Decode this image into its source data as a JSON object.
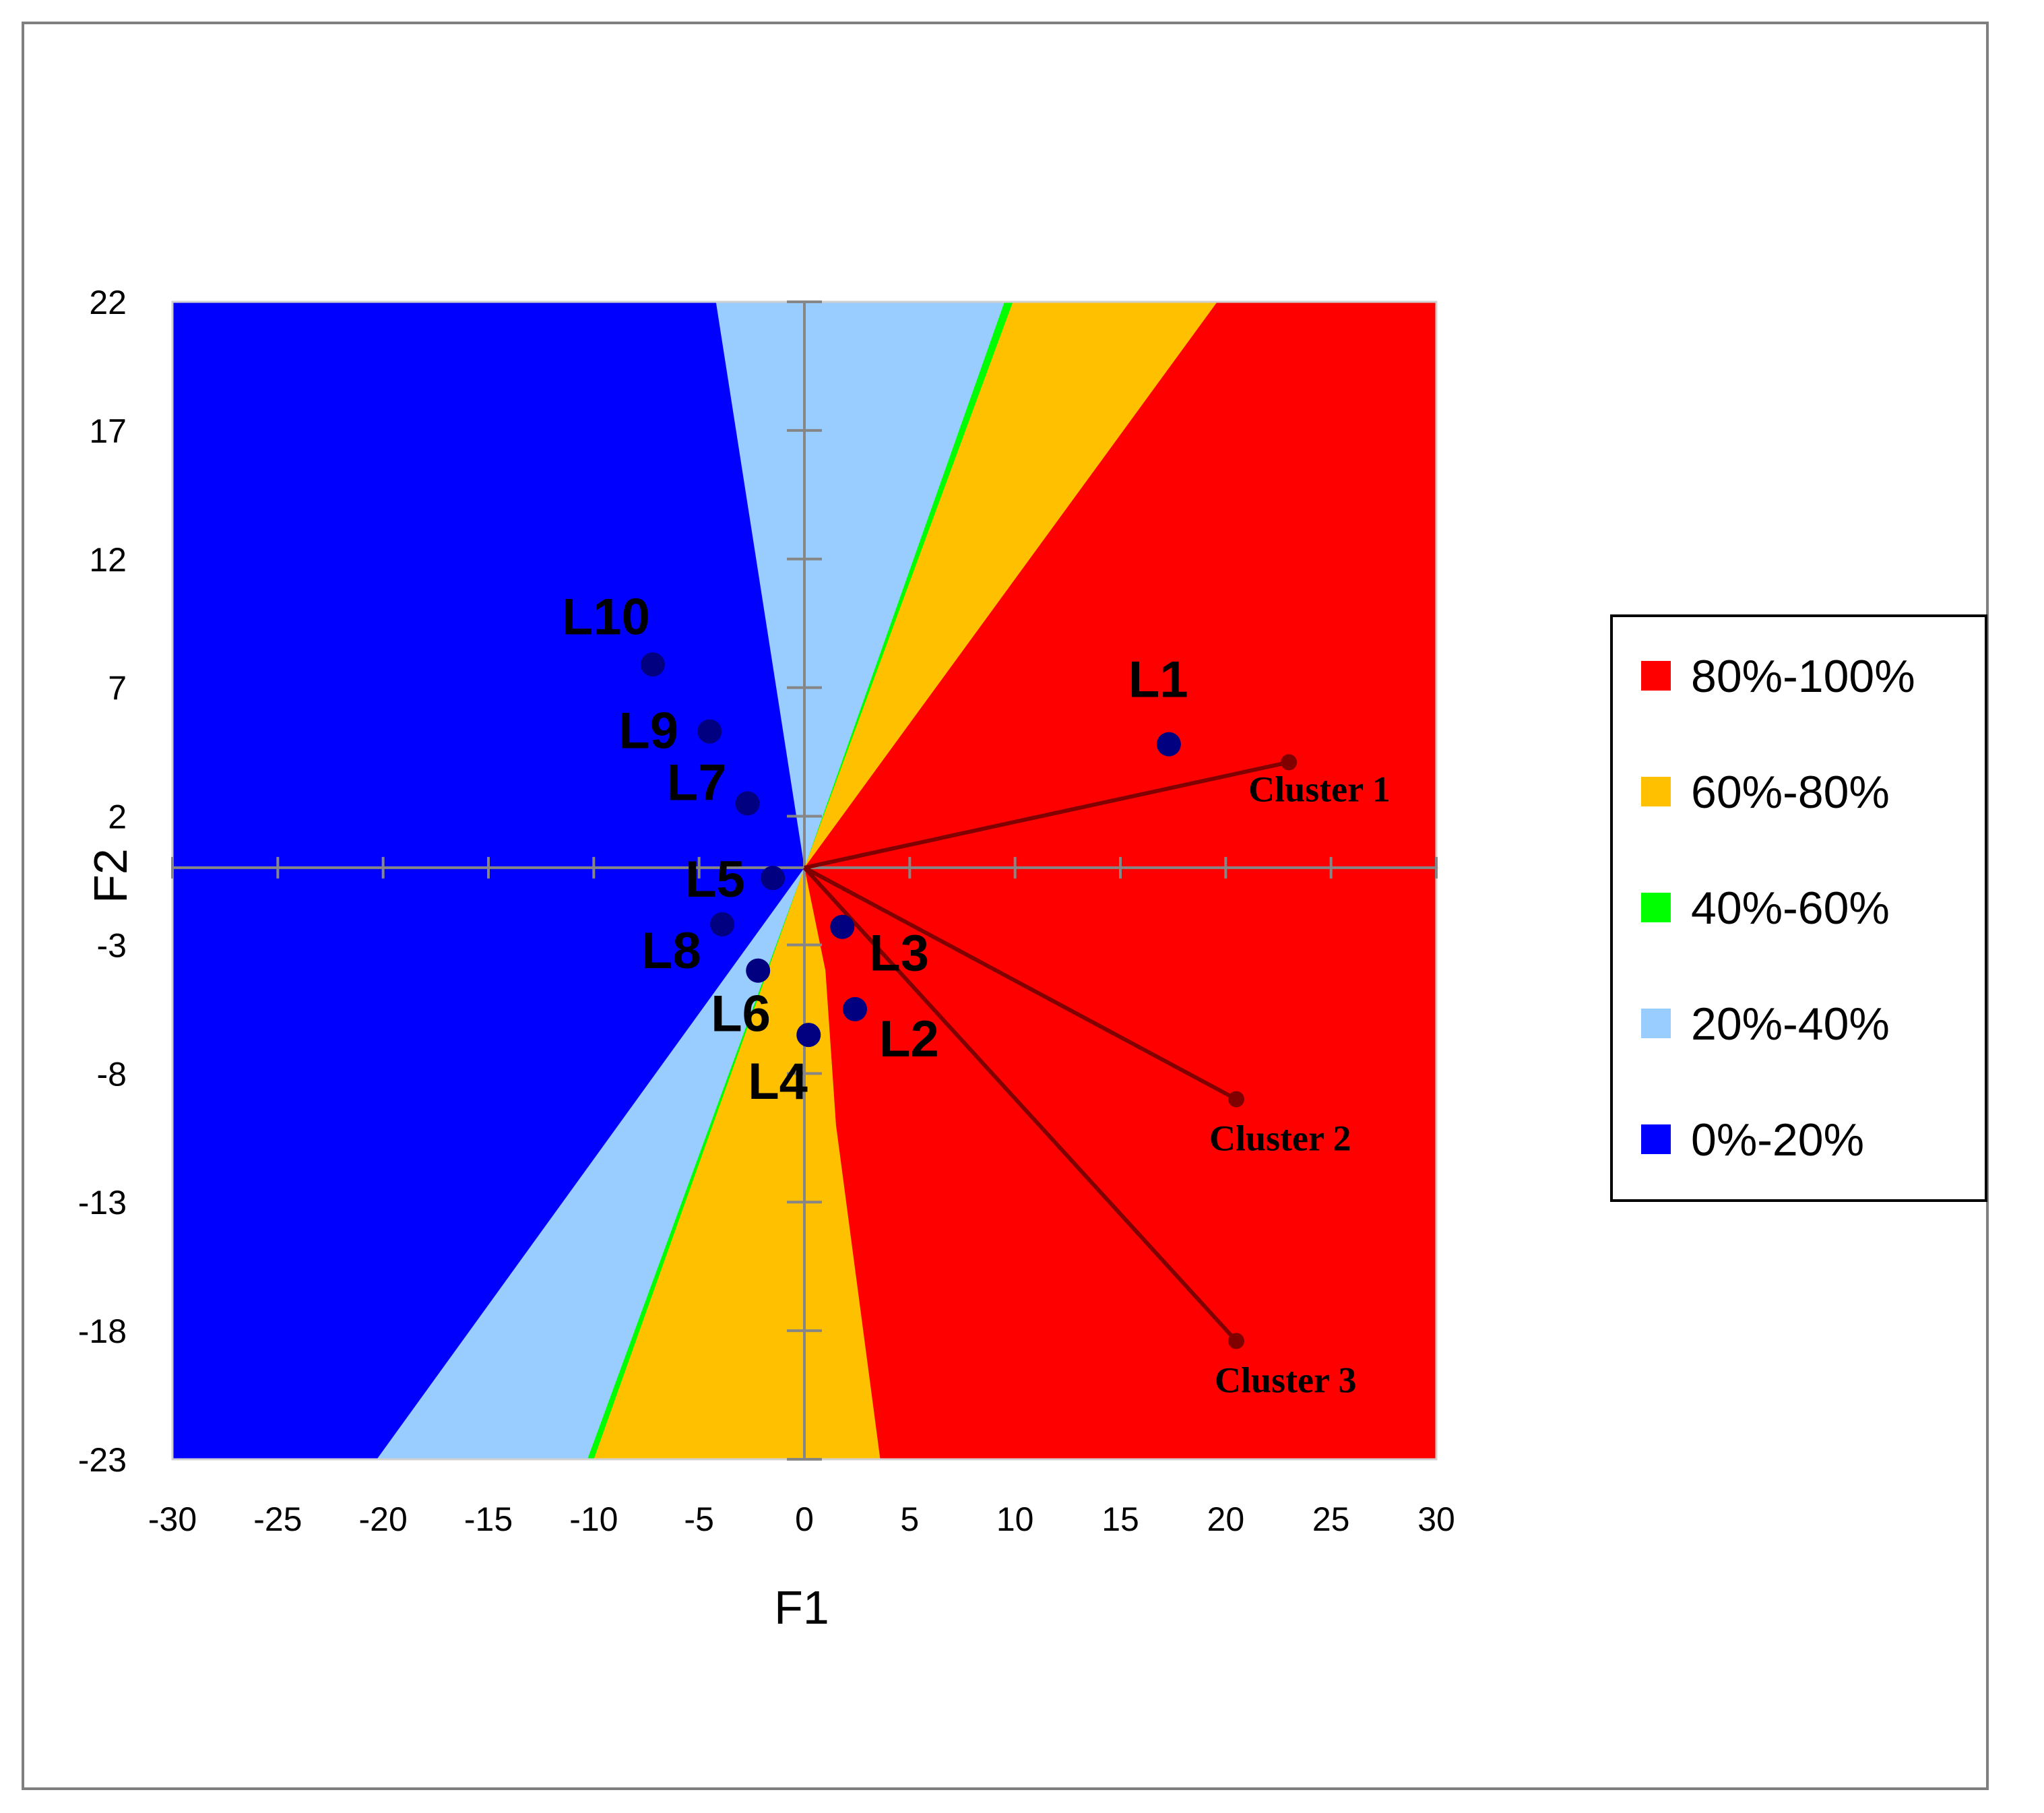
{
  "chart_data": {
    "type": "scatter",
    "xlabel": "F1",
    "ylabel": "F2",
    "xlim": [
      -30,
      30
    ],
    "ylim": [
      -23,
      22
    ],
    "x_ticks": [
      -30,
      -25,
      -20,
      -15,
      -10,
      -5,
      0,
      5,
      10,
      15,
      20,
      25,
      30
    ],
    "y_ticks": [
      22,
      17,
      12,
      7,
      2,
      -3,
      -8,
      -13,
      -18,
      -23
    ],
    "x_tick_labels": [
      "-30",
      "-25",
      "-20",
      "-15",
      "-10",
      "-5",
      "0",
      "5",
      "10",
      "15",
      "20",
      "25",
      "30"
    ],
    "y_tick_labels": [
      "22",
      "17",
      "12",
      "7",
      "2",
      "-3",
      "-8",
      "-13",
      "-18",
      "-23"
    ],
    "points": [
      {
        "label": "L1",
        "x": 17.3,
        "y": 4.8
      },
      {
        "label": "L2",
        "x": 2.4,
        "y": -5.5
      },
      {
        "label": "L3",
        "x": 1.8,
        "y": -2.3
      },
      {
        "label": "L4",
        "x": 0.2,
        "y": -6.5
      },
      {
        "label": "L5",
        "x": -1.5,
        "y": -0.4
      },
      {
        "label": "L6",
        "x": -2.2,
        "y": -4.0
      },
      {
        "label": "L7",
        "x": -2.7,
        "y": 2.5
      },
      {
        "label": "L8",
        "x": -3.9,
        "y": -2.2
      },
      {
        "label": "L9",
        "x": -4.5,
        "y": 5.3
      },
      {
        "label": "L10",
        "x": -7.2,
        "y": 7.9
      }
    ],
    "vectors": [
      {
        "label": "Cluster 1",
        "x": 23,
        "y": 4.1
      },
      {
        "label": "Cluster 2",
        "x": 20.5,
        "y": -9.0
      },
      {
        "label": "Cluster 3",
        "x": 20.5,
        "y": -18.4
      }
    ],
    "legend": {
      "position": "right",
      "entries": [
        {
          "label": "80%-100%",
          "color": "#ff0000"
        },
        {
          "label": "60%-80%",
          "color": "#ffc000"
        },
        {
          "label": "40%-60%",
          "color": "#00ff00"
        },
        {
          "label": "20%-40%",
          "color": "#99ccff"
        },
        {
          "label": "0%-20%",
          "color": "#0000ff"
        }
      ]
    },
    "colors": {
      "red": "#ff0000",
      "orange": "#ffc000",
      "green": "#00ff00",
      "lightblue": "#99ccff",
      "blue": "#0000ff",
      "point": "#000080",
      "vector": "#800000",
      "axis": "#868686"
    }
  }
}
